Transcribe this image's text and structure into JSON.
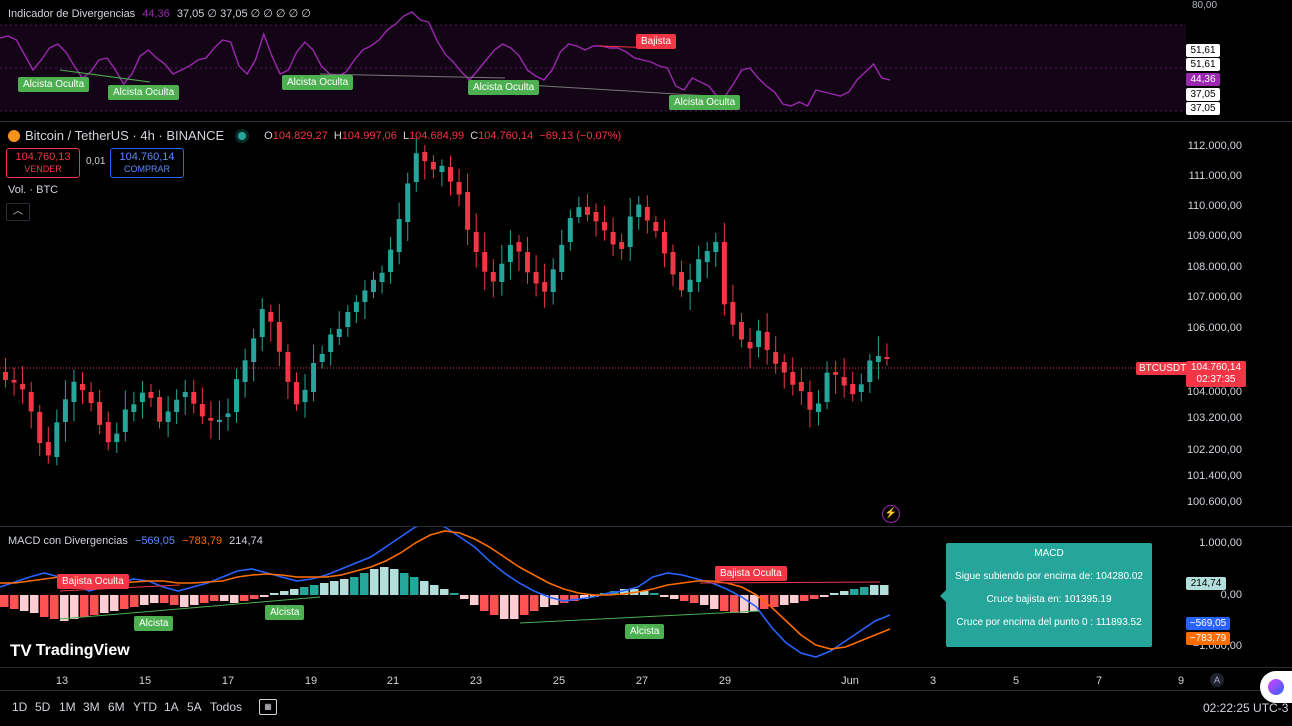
{
  "colors": {
    "up": "#26a69a",
    "down": "#f23645",
    "rsi": "#9c27b0",
    "macd": "#2962ff",
    "signal": "#ff6d00",
    "tooltip": "#26a69a"
  },
  "rsi_pane": {
    "title": "Indicador de Divergencias",
    "value": "44,36",
    "extra": "37,05 ∅ 37,05 ∅ ∅ ∅ ∅ ∅",
    "axis_top": "80,00",
    "tags": [
      "51,61",
      "51,61",
      "44,36",
      "37,05",
      "37,05"
    ],
    "divergence_labels": [
      "Alcista Oculta",
      "Alcista Oculta",
      "Alcista Oculta",
      "Alcista Oculta",
      "Bajista",
      "Alcista Oculta"
    ]
  },
  "symbol": {
    "name": "Bitcoin / TetherUS · 4h · BINANCE",
    "o_label": "O",
    "o": "104.829,27",
    "h_label": "H",
    "h": "104.997,06",
    "l_label": "L",
    "l": "104.684,99",
    "c_label": "C",
    "c": "104.760,14",
    "change": "−69,13 (−0,07%)"
  },
  "trade": {
    "sell_price": "104.760,13",
    "sell_label": "VENDER",
    "spread": "0,01",
    "buy_price": "104.760,14",
    "buy_label": "COMPRAR"
  },
  "volume_label": "Vol. · BTC",
  "price_axis": {
    "labels": [
      "112.000,00",
      "111.000,00",
      "110.000,00",
      "109.000,00",
      "108.000,00",
      "107.000,00",
      "106.000,00",
      "104.000,00",
      "103.200,00",
      "102.200,00",
      "101.400,00",
      "100.600,00"
    ],
    "symbol_tag": "BTCUSDT",
    "last_price": "104.760,14",
    "countdown": "02:37:35"
  },
  "macd_pane": {
    "title": "MACD con Divergencias",
    "macd": "−569,05",
    "signal": "−783,79",
    "hist": "214,74",
    "axis": [
      "1.000,00",
      "0,00",
      "−1.000,00"
    ],
    "tags": [
      "214,74",
      "−569,05",
      "−783,79"
    ],
    "divergence_labels": [
      "Bajista Oculta",
      "Alcista",
      "Alcista",
      "Alcista",
      "Bajista Oculta"
    ]
  },
  "tooltip": {
    "title": "MACD",
    "line1": "Sigue subiendo por encima de: 104280.02",
    "line2": "Cruce bajista en: 101395.19",
    "line3": "Cruce por encima del punto 0 : 111893.52"
  },
  "dates": [
    "13",
    "15",
    "17",
    "19",
    "21",
    "23",
    "25",
    "27",
    "29",
    "Jun",
    "3",
    "5",
    "7",
    "9"
  ],
  "logo": "TradingView",
  "ranges": [
    "1D",
    "5D",
    "1M",
    "3M",
    "6M",
    "YTD",
    "1A",
    "5A",
    "Todos"
  ],
  "clock": "02:22:25 UTC-3",
  "axis_mode": "A"
}
